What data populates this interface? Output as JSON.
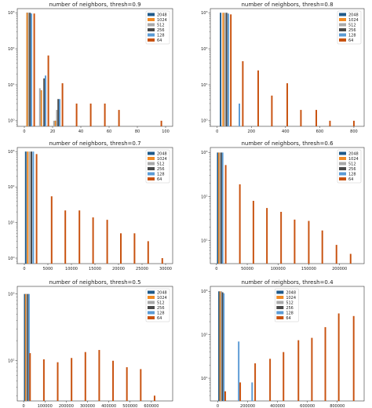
{
  "series_colors": {
    "2048": "#1f5a8a",
    "1024": "#f08a24",
    "512": "#a9a9a9",
    "256": "#4a4a4a",
    "128": "#5b9bd5",
    "64": "#c8520f"
  },
  "chart_data": [
    {
      "type": "bar",
      "title": "number of neighbors, thresh=0.9",
      "yscale": "log",
      "ylim": [
        0.7,
        1300
      ],
      "xlim": [
        -5,
        105
      ],
      "xticks": [
        0,
        20,
        40,
        60,
        80,
        100
      ],
      "xtick_labels": [
        "0",
        "20",
        "40",
        "60",
        "80",
        "100"
      ],
      "ytick_labels": [
        "10⁰",
        "10¹",
        "10²",
        "10³"
      ],
      "legend": [
        "2048",
        "1024",
        "512",
        "256",
        "128",
        "64"
      ],
      "legend_position": "top-right",
      "series": [
        {
          "name": "2048",
          "x": [
            2,
            12,
            22
          ],
          "values": [
            1000,
            7,
            1
          ]
        },
        {
          "name": "1024",
          "x": [
            2,
            12,
            22
          ],
          "values": [
            1000,
            7,
            1
          ]
        },
        {
          "name": "512",
          "x": [
            3,
            11,
            21,
            23
          ],
          "values": [
            1000,
            8,
            1,
            2
          ]
        },
        {
          "name": "256",
          "x": [
            4,
            14,
            24
          ],
          "values": [
            1000,
            15,
            4
          ]
        },
        {
          "name": "128",
          "x": [
            5,
            15,
            25
          ],
          "values": [
            950,
            18,
            4
          ]
        },
        {
          "name": "64",
          "x": [
            7,
            17,
            27,
            37,
            47,
            57,
            67,
            97
          ],
          "values": [
            950,
            65,
            11,
            3,
            3,
            3,
            2,
            1
          ]
        }
      ]
    },
    {
      "type": "bar",
      "title": "number of neighbors, thresh=0.8",
      "yscale": "log",
      "ylim": [
        0.7,
        1300
      ],
      "xlim": [
        -40,
        860
      ],
      "xticks": [
        0,
        200,
        400,
        600,
        800
      ],
      "xtick_labels": [
        "0",
        "200",
        "400",
        "600",
        "800"
      ],
      "ytick_labels": [
        "10⁰",
        "10¹",
        "10²",
        "10³"
      ],
      "legend": [
        "2048",
        "1024",
        "512",
        "256",
        "128",
        "64"
      ],
      "legend_position": "top-right",
      "series": [
        {
          "name": "2048",
          "x": [
            20
          ],
          "values": [
            1000
          ]
        },
        {
          "name": "1024",
          "x": [
            35
          ],
          "values": [
            1000
          ]
        },
        {
          "name": "512",
          "x": [
            45
          ],
          "values": [
            1000
          ]
        },
        {
          "name": "256",
          "x": [
            55
          ],
          "values": [
            1000
          ]
        },
        {
          "name": "128",
          "x": [
            65,
            130
          ],
          "values": [
            950,
            3
          ]
        },
        {
          "name": "64",
          "x": [
            80,
            150,
            240,
            320,
            410,
            490,
            580,
            660,
            800
          ],
          "values": [
            900,
            45,
            25,
            5,
            11,
            2,
            2,
            1,
            1
          ]
        }
      ]
    },
    {
      "type": "bar",
      "title": "number of neighbors, thresh=0.7",
      "yscale": "log",
      "ylim": [
        0.7,
        1300
      ],
      "xlim": [
        -1500,
        31500
      ],
      "xticks": [
        0,
        5000,
        10000,
        15000,
        20000,
        25000,
        30000
      ],
      "xtick_labels": [
        "0",
        "5000",
        "10000",
        "15000",
        "20000",
        "25000",
        "30000"
      ],
      "ytick_labels": [
        "10⁰",
        "10¹",
        "10²",
        "10³"
      ],
      "legend": [
        "2048",
        "1024",
        "512",
        "256",
        "128",
        "64"
      ],
      "legend_position": "top-right",
      "series": [
        {
          "name": "2048",
          "x": [
            300
          ],
          "values": [
            1000
          ]
        },
        {
          "name": "1024",
          "x": [
            700
          ],
          "values": [
            1000
          ]
        },
        {
          "name": "512",
          "x": [
            1100
          ],
          "values": [
            1000
          ]
        },
        {
          "name": "256",
          "x": [
            1500
          ],
          "values": [
            1000
          ]
        },
        {
          "name": "128",
          "x": [
            1900
          ],
          "values": [
            1000
          ]
        },
        {
          "name": "64",
          "x": [
            2600,
            5800,
            8700,
            11700,
            14600,
            17600,
            20500,
            23400,
            26300,
            29300
          ],
          "values": [
            850,
            55,
            22,
            22,
            14,
            12,
            5,
            5,
            3,
            1
          ]
        }
      ]
    },
    {
      "type": "bar",
      "title": "number of neighbors, thresh=0.6",
      "yscale": "log",
      "ylim": [
        3,
        1300
      ],
      "xlim": [
        -10000,
        240000
      ],
      "xticks": [
        0,
        50000,
        100000,
        150000,
        200000
      ],
      "xtick_labels": [
        "0",
        "50000",
        "100000",
        "150000",
        "200000"
      ],
      "ytick_labels": [
        "10¹",
        "10²",
        "10³"
      ],
      "legend": [
        "2048",
        "1024",
        "512",
        "256",
        "128",
        "64"
      ],
      "legend_position": "top-right",
      "series": [
        {
          "name": "2048",
          "x": [
            2000
          ],
          "values": [
            1000
          ]
        },
        {
          "name": "1024",
          "x": [
            4000
          ],
          "values": [
            1000
          ]
        },
        {
          "name": "512",
          "x": [
            6000
          ],
          "values": [
            1000
          ]
        },
        {
          "name": "256",
          "x": [
            8000
          ],
          "values": [
            1000
          ]
        },
        {
          "name": "128",
          "x": [
            10000
          ],
          "values": [
            1000
          ]
        },
        {
          "name": "64",
          "x": [
            15000,
            38000,
            60000,
            82000,
            105000,
            127000,
            150000,
            172000,
            195000,
            218000
          ],
          "values": [
            520,
            190,
            80,
            55,
            45,
            30,
            28,
            17,
            8,
            5
          ]
        }
      ]
    },
    {
      "type": "bar",
      "title": "number of neighbors, thresh=0.5",
      "yscale": "log",
      "ylim": [
        25,
        1300
      ],
      "xlim": [
        -30000,
        700000
      ],
      "xticks": [
        0,
        100000,
        200000,
        300000,
        400000,
        500000,
        600000
      ],
      "xtick_labels": [
        "0",
        "100000",
        "200000",
        "300000",
        "400000",
        "500000",
        "600000"
      ],
      "ytick_labels": [
        "10²",
        "10³"
      ],
      "legend": [
        "2048",
        "1024",
        "512",
        "256",
        "128",
        "64"
      ],
      "legend_position": "top-right",
      "series": [
        {
          "name": "2048",
          "x": [
            5000
          ],
          "values": [
            1000
          ]
        },
        {
          "name": "1024",
          "x": [
            10000
          ],
          "values": [
            1000
          ]
        },
        {
          "name": "512",
          "x": [
            15000
          ],
          "values": [
            1000
          ]
        },
        {
          "name": "256",
          "x": [
            20000
          ],
          "values": [
            1000
          ]
        },
        {
          "name": "128",
          "x": [
            25000
          ],
          "values": [
            1000
          ]
        },
        {
          "name": "64",
          "x": [
            30000,
            95000,
            160000,
            225000,
            290000,
            355000,
            420000,
            485000,
            550000,
            615000
          ],
          "values": [
            130,
            105,
            95,
            110,
            135,
            145,
            100,
            80,
            75,
            30
          ]
        }
      ]
    },
    {
      "type": "bar",
      "title": "number of neighbors, thresh=0.4",
      "yscale": "log",
      "ylim": [
        3,
        1300
      ],
      "xlim": [
        -50000,
        980000
      ],
      "xticks": [
        0,
        200000,
        400000,
        600000,
        800000
      ],
      "xtick_labels": [
        "0",
        "200000",
        "400000",
        "600000",
        "800000"
      ],
      "ytick_labels": [
        "10¹",
        "10²",
        "10³"
      ],
      "legend": [
        "2048",
        "1024",
        "512",
        "256",
        "128",
        "64"
      ],
      "legend_position": "top-center",
      "series": [
        {
          "name": "2048",
          "x": [
            8000
          ],
          "values": [
            1000
          ]
        },
        {
          "name": "1024",
          "x": [
            16000
          ],
          "values": [
            1000
          ]
        },
        {
          "name": "512",
          "x": [
            24000
          ],
          "values": [
            1000
          ]
        },
        {
          "name": "256",
          "x": [
            32000
          ],
          "values": [
            950
          ]
        },
        {
          "name": "128",
          "x": [
            40000,
            140000,
            230000
          ],
          "values": [
            900,
            70,
            8
          ]
        },
        {
          "name": "64",
          "x": [
            50000,
            150000,
            250000,
            350000,
            440000,
            540000,
            630000,
            720000,
            810000,
            910000
          ],
          "values": [
            5,
            8,
            22,
            28,
            40,
            75,
            85,
            150,
            310,
            270
          ]
        }
      ]
    }
  ]
}
